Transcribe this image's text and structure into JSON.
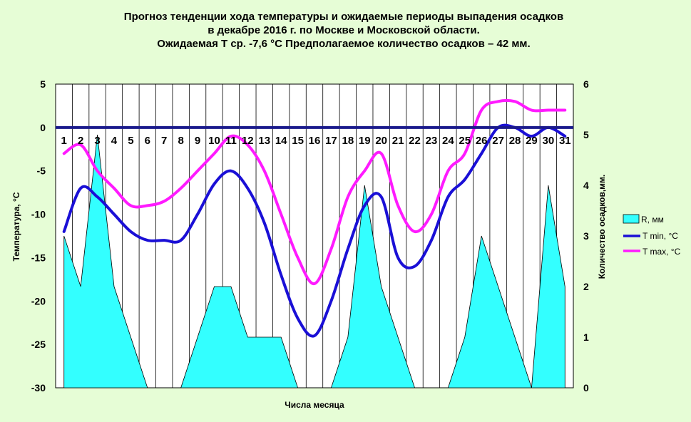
{
  "chart_data": {
    "type": "line",
    "title": [
      "Прогноз тенденции хода температуры и ожидаемые периоды выпадения осадков",
      "в декабре 2016 г. по Москве и Московской области.",
      "Ожидаемая Т ср. -7,6 °С Предполагаемое количество осадков – 42 мм."
    ],
    "xlabel": "Числа месяца",
    "ylabel_left": "Температура, °С",
    "ylabel_right": "Количество осадков,мм.",
    "x": [
      1,
      2,
      3,
      4,
      5,
      6,
      7,
      8,
      9,
      10,
      11,
      12,
      13,
      14,
      15,
      16,
      17,
      18,
      19,
      20,
      21,
      22,
      23,
      24,
      25,
      26,
      27,
      28,
      29,
      30,
      31
    ],
    "ylim_left": [
      -30,
      5
    ],
    "yticks_left": [
      5,
      0,
      -5,
      -10,
      -15,
      -20,
      -25,
      -30
    ],
    "ylim_right": [
      0,
      6
    ],
    "yticks_right": [
      6,
      5,
      4,
      3,
      2,
      1,
      0
    ],
    "legend_position": "right",
    "series": [
      {
        "name": "R, мм",
        "kind": "area",
        "axis": "right",
        "color": "#33ffff",
        "values": [
          3,
          2,
          5,
          2,
          1,
          0,
          0,
          0,
          1,
          2,
          2,
          1,
          1,
          1,
          0,
          0,
          0,
          1,
          4,
          2,
          1,
          0,
          0,
          0,
          1,
          3,
          2,
          1,
          0,
          4,
          2
        ]
      },
      {
        "name": "T min, °С",
        "kind": "line",
        "axis": "left",
        "color": "#1a0fd6",
        "values": [
          -12,
          -7,
          -8,
          -10,
          -12,
          -13,
          -13,
          -13,
          -10,
          -6.5,
          -5,
          -7,
          -11,
          -17,
          -22,
          -24,
          -20,
          -14,
          -9,
          -8,
          -15,
          -16,
          -13,
          -8,
          -6,
          -3,
          0,
          0,
          -1,
          0,
          -1
        ]
      },
      {
        "name": "T max, °С",
        "kind": "line",
        "axis": "left",
        "color": "#ff1aff",
        "values": [
          -3,
          -2,
          -5,
          -7,
          -9,
          -9,
          -8.5,
          -7,
          -5,
          -3,
          -1,
          -2,
          -5,
          -10,
          -15,
          -18,
          -14,
          -8,
          -5,
          -3,
          -9,
          -12,
          -10,
          -5,
          -3,
          2,
          3,
          3,
          2,
          2,
          2
        ]
      }
    ]
  }
}
